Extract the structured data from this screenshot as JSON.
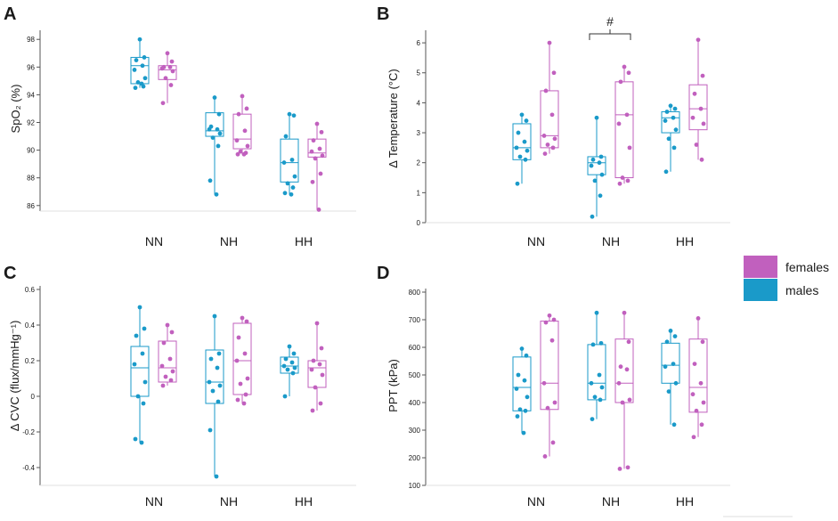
{
  "colors": {
    "males": "#1a9ac9",
    "females": "#c160be",
    "axis": "#555555"
  },
  "legend": [
    {
      "label": "females",
      "color": "#c160be"
    },
    {
      "label": "males",
      "color": "#1a9ac9"
    }
  ],
  "chart_data": [
    {
      "panel": "A",
      "type": "box",
      "ylabel": "SpO₂ (%)",
      "ylim": [
        85.6,
        98.4
      ],
      "yticks": [
        86,
        88,
        90,
        92,
        94,
        96,
        98
      ],
      "groups": [
        "NN",
        "NH",
        "HH"
      ],
      "series": [
        {
          "name": "males",
          "boxes": [
            {
              "q1": 94.8,
              "median": 96.1,
              "q3": 96.7,
              "min": 94.5,
              "max": 98.0,
              "points": [
                98.0,
                96.7,
                96.5,
                96.1,
                95.8,
                95.2,
                94.9,
                94.6,
                94.5,
                94.8
              ]
            },
            {
              "q1": 91.0,
              "median": 91.4,
              "q3": 92.7,
              "min": 86.8,
              "max": 93.8,
              "points": [
                93.8,
                92.6,
                91.7,
                91.5,
                91.5,
                91.2,
                90.9,
                90.3,
                87.8,
                86.8
              ]
            },
            {
              "q1": 87.7,
              "median": 89.1,
              "q3": 90.8,
              "min": 86.8,
              "max": 92.6,
              "points": [
                92.6,
                92.5,
                91.0,
                89.3,
                89.1,
                88.1,
                87.6,
                87.3,
                86.9,
                86.8
              ]
            }
          ]
        },
        {
          "name": "females",
          "boxes": [
            {
              "q1": 95.1,
              "median": 95.8,
              "q3": 96.1,
              "min": 93.4,
              "max": 97.0,
              "points": [
                97.0,
                96.4,
                96.0,
                96.0,
                95.9,
                95.7,
                95.2,
                94.7,
                93.4
              ]
            },
            {
              "q1": 90.1,
              "median": 90.8,
              "q3": 92.6,
              "min": 89.7,
              "max": 93.9,
              "points": [
                93.9,
                93.0,
                92.6,
                91.4,
                90.7,
                90.3,
                89.9,
                89.8,
                89.7,
                89.7
              ]
            },
            {
              "q1": 89.5,
              "median": 89.8,
              "q3": 90.8,
              "min": 85.7,
              "max": 91.9,
              "points": [
                91.9,
                91.3,
                90.7,
                90.1,
                89.9,
                89.6,
                89.4,
                88.3,
                87.7,
                85.7
              ]
            }
          ]
        }
      ]
    },
    {
      "panel": "B",
      "type": "box",
      "ylabel": "Δ Temperature (°C)",
      "ylim": [
        0,
        6.3
      ],
      "yticks": [
        0,
        1,
        2,
        3,
        4,
        5,
        6
      ],
      "groups": [
        "NN",
        "NH",
        "HH"
      ],
      "series": [
        {
          "name": "males",
          "boxes": [
            {
              "q1": 2.1,
              "median": 2.5,
              "q3": 3.3,
              "min": 1.3,
              "max": 3.6,
              "points": [
                3.6,
                3.4,
                3.0,
                2.7,
                2.5,
                2.4,
                2.2,
                2.1,
                1.3
              ]
            },
            {
              "q1": 1.6,
              "median": 2.0,
              "q3": 2.2,
              "min": 0.2,
              "max": 3.5,
              "points": [
                3.5,
                2.2,
                2.1,
                2.0,
                1.9,
                1.6,
                1.4,
                0.9,
                0.2
              ]
            },
            {
              "q1": 3.0,
              "median": 3.5,
              "q3": 3.7,
              "min": 1.7,
              "max": 3.9,
              "points": [
                3.9,
                3.8,
                3.7,
                3.5,
                3.4,
                3.1,
                2.8,
                2.5,
                1.7
              ]
            }
          ]
        },
        {
          "name": "females",
          "boxes": [
            {
              "q1": 2.5,
              "median": 2.9,
              "q3": 4.4,
              "min": 2.3,
              "max": 6.0,
              "points": [
                6.0,
                5.0,
                4.4,
                3.6,
                2.9,
                2.8,
                2.6,
                2.5,
                2.3
              ]
            },
            {
              "q1": 1.5,
              "median": 3.6,
              "q3": 4.7,
              "min": 1.3,
              "max": 5.2,
              "points": [
                5.2,
                5.0,
                4.7,
                3.6,
                3.3,
                2.5,
                1.5,
                1.4,
                1.3
              ]
            },
            {
              "q1": 3.1,
              "median": 3.8,
              "q3": 4.6,
              "min": 2.1,
              "max": 6.1,
              "points": [
                6.1,
                4.9,
                4.3,
                3.8,
                3.5,
                3.3,
                2.6,
                2.1
              ]
            }
          ]
        }
      ]
    },
    {
      "panel": "C",
      "type": "box",
      "ylabel": "Δ CVC (flux/mmHg⁻¹)",
      "ylim": [
        -0.5,
        0.6
      ],
      "yticks": [
        -0.4,
        -0.2,
        0,
        0.2,
        0.4,
        0.6
      ],
      "groups": [
        "NN",
        "NH",
        "HH"
      ],
      "series": [
        {
          "name": "males",
          "boxes": [
            {
              "q1": 0.0,
              "median": 0.16,
              "q3": 0.28,
              "min": -0.26,
              "max": 0.5,
              "points": [
                0.5,
                0.38,
                0.34,
                0.24,
                0.18,
                0.08,
                0.0,
                -0.04,
                -0.24,
                -0.26
              ]
            },
            {
              "q1": -0.04,
              "median": 0.08,
              "q3": 0.26,
              "min": -0.45,
              "max": 0.45,
              "points": [
                0.45,
                0.24,
                0.21,
                0.16,
                0.08,
                0.06,
                0.03,
                -0.03,
                -0.19,
                -0.45
              ]
            },
            {
              "q1": 0.13,
              "median": 0.17,
              "q3": 0.22,
              "min": 0.0,
              "max": 0.28,
              "points": [
                0.28,
                0.24,
                0.21,
                0.19,
                0.17,
                0.16,
                0.15,
                0.13,
                0.0
              ]
            }
          ]
        },
        {
          "name": "females",
          "boxes": [
            {
              "q1": 0.08,
              "median": 0.16,
              "q3": 0.31,
              "min": 0.06,
              "max": 0.4,
              "points": [
                0.4,
                0.36,
                0.3,
                0.21,
                0.17,
                0.14,
                0.11,
                0.09,
                0.06
              ]
            },
            {
              "q1": 0.01,
              "median": 0.2,
              "q3": 0.41,
              "min": -0.04,
              "max": 0.44,
              "points": [
                0.44,
                0.42,
                0.33,
                0.24,
                0.2,
                0.1,
                0.07,
                0.01,
                -0.02,
                -0.04
              ]
            },
            {
              "q1": 0.05,
              "median": 0.16,
              "q3": 0.2,
              "min": -0.08,
              "max": 0.41,
              "points": [
                0.41,
                0.27,
                0.2,
                0.18,
                0.15,
                0.12,
                0.05,
                -0.04,
                -0.08
              ]
            }
          ]
        }
      ]
    },
    {
      "panel": "D",
      "type": "box",
      "ylabel": "PPT (kPa)",
      "ylim": [
        100,
        800
      ],
      "yticks": [
        100,
        200,
        300,
        400,
        500,
        600,
        700,
        800
      ],
      "groups": [
        "NN",
        "NH",
        "HH"
      ],
      "series": [
        {
          "name": "males",
          "boxes": [
            {
              "q1": 370,
              "median": 455,
              "q3": 565,
              "min": 290,
              "max": 595,
              "points": [
                595,
                570,
                500,
                480,
                450,
                420,
                375,
                370,
                350,
                290
              ]
            },
            {
              "q1": 410,
              "median": 470,
              "q3": 610,
              "min": 340,
              "max": 725,
              "points": [
                725,
                615,
                610,
                500,
                470,
                455,
                420,
                410,
                340
              ]
            },
            {
              "q1": 470,
              "median": 535,
              "q3": 615,
              "min": 320,
              "max": 660,
              "points": [
                660,
                640,
                620,
                540,
                530,
                470,
                440,
                320
              ]
            }
          ]
        },
        {
          "name": "females",
          "boxes": [
            {
              "q1": 375,
              "median": 470,
              "q3": 695,
              "min": 205,
              "max": 715,
              "points": [
                715,
                700,
                690,
                625,
                470,
                400,
                380,
                255,
                205
              ]
            },
            {
              "q1": 400,
              "median": 470,
              "q3": 630,
              "min": 160,
              "max": 725,
              "points": [
                725,
                620,
                530,
                520,
                470,
                410,
                400,
                165,
                160
              ]
            },
            {
              "q1": 365,
              "median": 455,
              "q3": 630,
              "min": 275,
              "max": 705,
              "points": [
                705,
                620,
                540,
                470,
                430,
                400,
                370,
                320,
                275
              ]
            }
          ]
        }
      ]
    }
  ],
  "annotations": [
    {
      "panel": "B",
      "group": "NH",
      "symbol": "#"
    }
  ]
}
